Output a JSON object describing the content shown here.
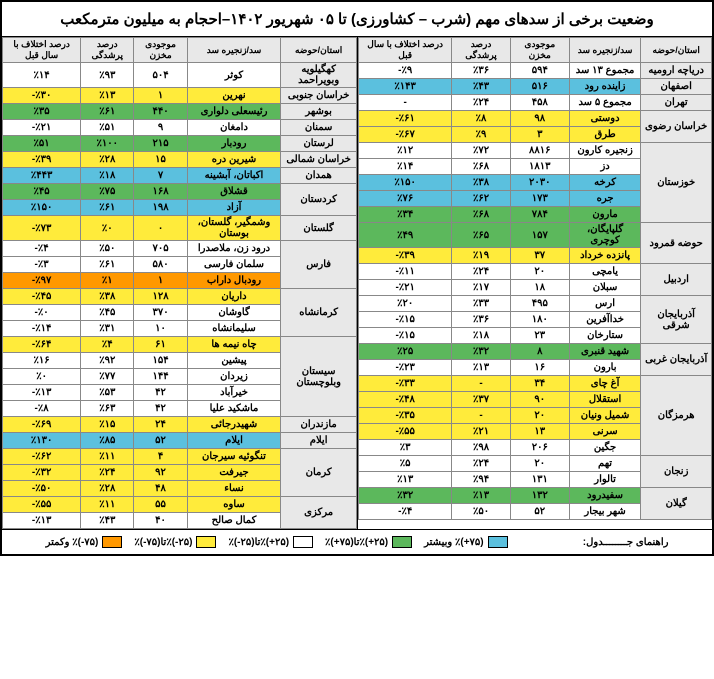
{
  "title": "وضعیت برخی از سدهای مهم (شرب – کشاورزی) تا ۰۵ شهریور ۱۴۰۲–احجام به میلیون مترمکعب",
  "headers": [
    "استان/حوضه",
    "سد/زنجیره سد",
    "موجودی مخزن",
    "درصد پرشدگی",
    "درصد اختلاف با سال قبل"
  ],
  "right_table": [
    {
      "prov": "دریاچه ارومیه",
      "dams": [
        {
          "n": "مجموع ۱۳ سد",
          "v": "۵۹۴",
          "p": "٪۳۶",
          "d": "٪۹-",
          "c": "white"
        }
      ]
    },
    {
      "prov": "اصفهان",
      "dams": [
        {
          "n": "زاینده رود",
          "v": "۵۱۶",
          "p": "٪۴۳",
          "d": "٪۱۴۳",
          "c": "blue"
        }
      ]
    },
    {
      "prov": "تهران",
      "dams": [
        {
          "n": "مجموع ۵ سد",
          "v": "۴۵۸",
          "p": "٪۲۴",
          "d": "-",
          "c": "white"
        }
      ]
    },
    {
      "prov": "خراسان رضوی",
      "dams": [
        {
          "n": "دوستی",
          "v": "۹۸",
          "p": "٪۸",
          "d": "٪۶۱-",
          "c": "yellow"
        },
        {
          "n": "طرق",
          "v": "۳",
          "p": "٪۹",
          "d": "٪۶۷-",
          "c": "yellow"
        }
      ]
    },
    {
      "prov": "خوزستان",
      "dams": [
        {
          "n": "زنجیره کارون",
          "v": "۸۸۱۶",
          "p": "٪۷۲",
          "d": "٪۱۲",
          "c": "white"
        },
        {
          "n": "دز",
          "v": "۱۸۱۳",
          "p": "٪۶۸",
          "d": "٪۱۴",
          "c": "white"
        },
        {
          "n": "کرخه",
          "v": "۲۰۳۰",
          "p": "٪۳۸",
          "d": "٪۱۵۰",
          "c": "blue"
        },
        {
          "n": "جره",
          "v": "۱۷۳",
          "p": "٪۶۲",
          "d": "٪۷۶",
          "c": "blue"
        },
        {
          "n": "مارون",
          "v": "۷۸۴",
          "p": "٪۶۸",
          "d": "٪۳۴",
          "c": "green"
        }
      ]
    },
    {
      "prov": "حوضه قمرود",
      "dams": [
        {
          "n": "گلپایگان، کوچری",
          "v": "۱۵۷",
          "p": "٪۶۵",
          "d": "٪۴۹",
          "c": "green"
        },
        {
          "n": "پانزده خرداد",
          "v": "۳۷",
          "p": "٪۱۹",
          "d": "٪۳۹-",
          "c": "yellow"
        }
      ]
    },
    {
      "prov": "اردبیل",
      "dams": [
        {
          "n": "یامچی",
          "v": "۲۰",
          "p": "٪۲۴",
          "d": "٪۱۱-",
          "c": "white"
        },
        {
          "n": "سبلان",
          "v": "۱۸",
          "p": "٪۱۷",
          "d": "٪۲۱-",
          "c": "white"
        }
      ]
    },
    {
      "prov": "آذربایجان شرقی",
      "dams": [
        {
          "n": "ارس",
          "v": "۴۹۵",
          "p": "٪۳۳",
          "d": "٪۲۰",
          "c": "white"
        },
        {
          "n": "خداآفرین",
          "v": "۱۸۰",
          "p": "٪۳۶",
          "d": "٪۱۵-",
          "c": "white"
        },
        {
          "n": "ستارخان",
          "v": "۲۳",
          "p": "٪۱۸",
          "d": "٪۱۵-",
          "c": "white"
        }
      ]
    },
    {
      "prov": "آذربایجان غربی",
      "dams": [
        {
          "n": "شهید قنبری",
          "v": "۸",
          "p": "٪۳۲",
          "d": "٪۲۵",
          "c": "green"
        },
        {
          "n": "بارون",
          "v": "۱۶",
          "p": "٪۱۳",
          "d": "٪۲۳-",
          "c": "white"
        }
      ]
    },
    {
      "prov": "هرمزگان",
      "dams": [
        {
          "n": "آغ چای",
          "v": "۳۴",
          "p": "-",
          "d": "٪۳۳-",
          "c": "yellow"
        },
        {
          "n": "استقلال",
          "v": "۹۰",
          "p": "٪۳۷",
          "d": "٪۴۸-",
          "c": "yellow"
        },
        {
          "n": "شمیل ونیان",
          "v": "۲۰",
          "p": "-",
          "d": "٪۳۵-",
          "c": "yellow"
        },
        {
          "n": "سرنی",
          "v": "۱۳",
          "p": "٪۲۱",
          "d": "٪۵۵-",
          "c": "yellow"
        },
        {
          "n": "جگین",
          "v": "۲۰۶",
          "p": "٪۹۸",
          "d": "٪۳",
          "c": "white"
        }
      ]
    },
    {
      "prov": "زنجان",
      "dams": [
        {
          "n": "تهم",
          "v": "۲۰",
          "p": "٪۲۴",
          "d": "٪۵",
          "c": "white"
        },
        {
          "n": "تالوار",
          "v": "۱۳۱",
          "p": "٪۹۴",
          "d": "٪۱۳",
          "c": "white"
        }
      ]
    },
    {
      "prov": "گیلان",
      "dams": [
        {
          "n": "سفیدرود",
          "v": "۱۳۲",
          "p": "٪۱۳",
          "d": "٪۳۲",
          "c": "green"
        },
        {
          "n": "شهر بیجار",
          "v": "۵۲",
          "p": "٪۵۰",
          "d": "٪۴-",
          "c": "white"
        }
      ]
    }
  ],
  "left_table": [
    {
      "prov": "کهگیلویه وبویراحمد",
      "dams": [
        {
          "n": "کوثر",
          "v": "۵۰۴",
          "p": "٪۹۳",
          "d": "٪۱۴",
          "c": "white"
        }
      ]
    },
    {
      "prov": "خراسان جنوبی",
      "dams": [
        {
          "n": "نهرین",
          "v": "۱",
          "p": "٪۱۳",
          "d": "٪۳۰-",
          "c": "yellow"
        }
      ]
    },
    {
      "prov": "بوشهر",
      "dams": [
        {
          "n": "رئیسعلی دلواری",
          "v": "۴۴۰",
          "p": "٪۶۱",
          "d": "٪۳۵",
          "c": "green"
        }
      ]
    },
    {
      "prov": "سمنان",
      "dams": [
        {
          "n": "دامغان",
          "v": "۹",
          "p": "٪۵۱",
          "d": "٪۲۱-",
          "c": "white"
        }
      ]
    },
    {
      "prov": "لرستان",
      "dams": [
        {
          "n": "رودبار",
          "v": "۲۱۵",
          "p": "٪۱۰۰",
          "d": "٪۵۱",
          "c": "green"
        }
      ]
    },
    {
      "prov": "خراسان شمالی",
      "dams": [
        {
          "n": "شیرین دره",
          "v": "۱۵",
          "p": "٪۲۸",
          "d": "٪۳۹-",
          "c": "yellow"
        }
      ]
    },
    {
      "prov": "همدان",
      "dams": [
        {
          "n": "اکباتان، آبشینه",
          "v": "۷",
          "p": "٪۱۸",
          "d": "٪۴۴۳",
          "c": "blue"
        }
      ]
    },
    {
      "prov": "کردستان",
      "dams": [
        {
          "n": "قشلاق",
          "v": "۱۶۸",
          "p": "٪۷۵",
          "d": "٪۴۵",
          "c": "green"
        },
        {
          "n": "آزاد",
          "v": "۱۹۸",
          "p": "٪۶۱",
          "d": "٪۱۵۰",
          "c": "blue"
        }
      ]
    },
    {
      "prov": "گلستان",
      "dams": [
        {
          "n": "وشمگیر، گلستان، بوستان",
          "v": "۰",
          "p": "٪۰",
          "d": "٪۷۳-",
          "c": "yellow"
        }
      ]
    },
    {
      "prov": "فارس",
      "dams": [
        {
          "n": "درود زن، ملاصدرا",
          "v": "۷۰۵",
          "p": "٪۵۰",
          "d": "٪۴-",
          "c": "white"
        },
        {
          "n": "سلمان فارسی",
          "v": "۵۸۰",
          "p": "٪۶۱",
          "d": "٪۳-",
          "c": "white"
        },
        {
          "n": "رودبال داراب",
          "v": "۱",
          "p": "٪۱",
          "d": "٪۹۷-",
          "c": "orange"
        }
      ]
    },
    {
      "prov": "کرمانشاه",
      "dams": [
        {
          "n": "داریان",
          "v": "۱۲۸",
          "p": "٪۳۸",
          "d": "٪۴۵-",
          "c": "yellow"
        },
        {
          "n": "گاوشان",
          "v": "۳۷۰",
          "p": "٪۴۵",
          "d": "٪۰-",
          "c": "white"
        },
        {
          "n": "سلیمانشاه",
          "v": "۱۰",
          "p": "٪۳۱",
          "d": "٪۱۴-",
          "c": "white"
        }
      ]
    },
    {
      "prov": "سیستان وبلوچستان",
      "dams": [
        {
          "n": "چاه نیمه ها",
          "v": "۶۱",
          "p": "٪۴",
          "d": "٪۶۴-",
          "c": "yellow"
        },
        {
          "n": "پیشین",
          "v": "۱۵۴",
          "p": "٪۹۲",
          "d": "٪۱۶",
          "c": "white"
        },
        {
          "n": "زیردان",
          "v": "۱۴۴",
          "p": "٪۷۷",
          "d": "٪۰",
          "c": "white"
        },
        {
          "n": "خیرآباد",
          "v": "۴۲",
          "p": "٪۵۳",
          "d": "٪۱۳-",
          "c": "white"
        },
        {
          "n": "ماشکید علیا",
          "v": "۴۲",
          "p": "٪۶۳",
          "d": "٪۸-",
          "c": "white"
        }
      ]
    },
    {
      "prov": "مازندران",
      "dams": [
        {
          "n": "شهیدرجائی",
          "v": "۲۴",
          "p": "٪۱۵",
          "d": "٪۶۹-",
          "c": "yellow"
        }
      ]
    },
    {
      "prov": "ایلام",
      "dams": [
        {
          "n": "ایلام",
          "v": "۵۲",
          "p": "٪۸۵",
          "d": "٪۱۳۰",
          "c": "blue"
        }
      ]
    },
    {
      "prov": "کرمان",
      "dams": [
        {
          "n": "تنگوئیه سیرجان",
          "v": "۴",
          "p": "٪۱۱",
          "d": "٪۶۲-",
          "c": "yellow"
        },
        {
          "n": "جیرفت",
          "v": "۹۲",
          "p": "٪۲۴",
          "d": "٪۳۲-",
          "c": "yellow"
        },
        {
          "n": "نساء",
          "v": "۴۸",
          "p": "٪۲۸",
          "d": "٪۵۰-",
          "c": "yellow"
        }
      ]
    },
    {
      "prov": "مرکزی",
      "dams": [
        {
          "n": "ساوه",
          "v": "۵۵",
          "p": "٪۱۱",
          "d": "٪۵۵-",
          "c": "yellow"
        },
        {
          "n": "کمال صالح",
          "v": "۴۰",
          "p": "٪۴۳",
          "d": "٪۱۳-",
          "c": "white"
        }
      ]
    }
  ],
  "legend": {
    "label": "راهنمای جــــــــدول:",
    "items": [
      {
        "c": "blue",
        "t": "(۷۵+)٪ وبیشتر"
      },
      {
        "c": "green",
        "t": "(۲۵+)٪تا(۷۵+)٪"
      },
      {
        "c": "white",
        "t": "(۲۵+)٪تا(۲۵-)٪"
      },
      {
        "c": "yellow",
        "t": "(۲۵-)٪تا(۷۵-)٪"
      },
      {
        "c": "orange",
        "t": "(۷۵-)٪ وکمتر"
      }
    ]
  }
}
